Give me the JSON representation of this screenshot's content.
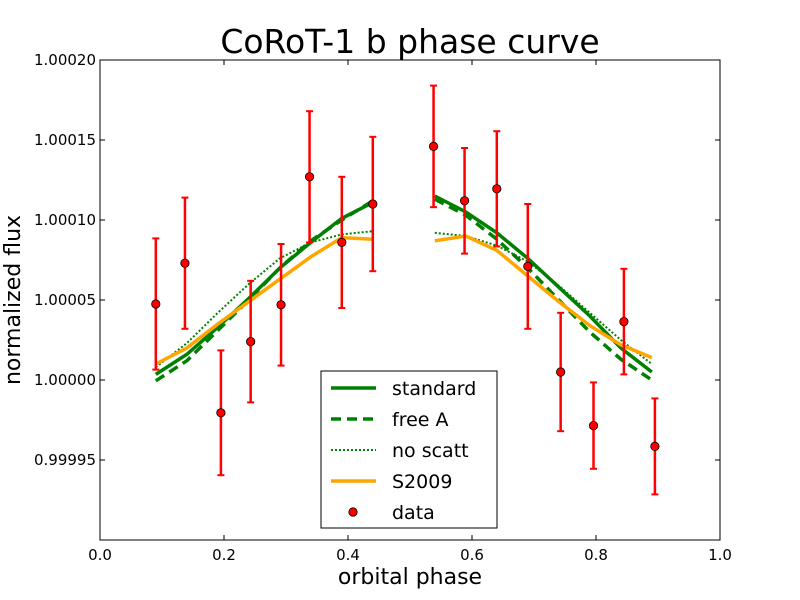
{
  "chart_data": {
    "type": "scatter",
    "title": "CoRoT-1 b phase curve",
    "xlabel": "orbital phase",
    "ylabel": "normalized flux",
    "xlim": [
      0.0,
      1.0
    ],
    "ylim": [
      0.9999,
      1.0002
    ],
    "xticks": [
      "0.0",
      "0.2",
      "0.4",
      "0.6",
      "0.8",
      "1.0"
    ],
    "yticks": [
      "0.99995",
      "1.00000",
      "1.00005",
      "1.00010",
      "1.00015",
      "1.00020"
    ],
    "legend_position": "bottom-center",
    "series": [
      {
        "name": "standard",
        "kind": "line",
        "color": "#008000",
        "style": "solid",
        "segments": [
          {
            "x": [
              0.09,
              0.14,
              0.19,
              0.24,
              0.29,
              0.34,
              0.39,
              0.44
            ],
            "y": [
              1.0000035,
              1.000016,
              1.000033,
              1.000051,
              1.00007,
              1.000086,
              1.000101,
              1.000111
            ]
          },
          {
            "x": [
              0.54,
              0.59,
              0.64,
              0.69,
              0.74,
              0.79,
              0.84,
              0.89
            ],
            "y": [
              1.000115,
              1.000105,
              1.000092,
              1.000076,
              1.000058,
              1.00004,
              1.00002,
              1.000005
            ]
          }
        ]
      },
      {
        "name": "free A",
        "kind": "line",
        "color": "#008000",
        "style": "dashed",
        "segments": [
          {
            "x": [
              0.09,
              0.14,
              0.19,
              0.24,
              0.29,
              0.34,
              0.39,
              0.44
            ],
            "y": [
              0.9999995,
              1.000012,
              1.000031,
              1.00005,
              1.00007,
              1.000087,
              1.0001,
              1.000112
            ]
          },
          {
            "x": [
              0.54,
              0.59,
              0.64,
              0.69,
              0.74,
              0.79,
              0.84,
              0.89
            ],
            "y": [
              1.000113,
              1.000103,
              1.000088,
              1.00007,
              1.00005,
              1.00003,
              1.000013,
              1.0
            ]
          }
        ]
      },
      {
        "name": "no scatt",
        "kind": "line",
        "color": "#008000",
        "style": "dotted",
        "segments": [
          {
            "x": [
              0.09,
              0.14,
              0.19,
              0.24,
              0.29,
              0.34,
              0.39,
              0.44
            ],
            "y": [
              1.000008,
              1.000023,
              1.000042,
              1.00006,
              1.000076,
              1.000086,
              1.000091,
              1.000093
            ]
          },
          {
            "x": [
              0.54,
              0.59,
              0.64,
              0.69,
              0.74,
              0.79,
              0.84,
              0.89
            ],
            "y": [
              1.000092,
              1.00009,
              1.000084,
              1.000074,
              1.000059,
              1.000042,
              1.000025,
              1.00001
            ]
          }
        ]
      },
      {
        "name": "S2009",
        "kind": "line",
        "color": "#FFA500",
        "style": "solid",
        "segments": [
          {
            "x": [
              0.09,
              0.14,
              0.19,
              0.24,
              0.29,
              0.34,
              0.39,
              0.44
            ],
            "y": [
              1.00001,
              1.00002,
              1.000035,
              1.000049,
              1.000063,
              1.000077,
              1.000089,
              1.000088
            ]
          },
          {
            "x": [
              0.54,
              0.59,
              0.64,
              0.69,
              0.74,
              0.79,
              0.84,
              0.89
            ],
            "y": [
              1.000087,
              1.00009,
              1.000081,
              1.000065,
              1.000049,
              1.000034,
              1.000022,
              1.000014
            ]
          }
        ]
      },
      {
        "name": "data",
        "kind": "errorbar",
        "color": "#FF0000",
        "errcolor": "#FF0000",
        "x": [
          0.09,
          0.137,
          0.195,
          0.243,
          0.292,
          0.338,
          0.39,
          0.44,
          0.538,
          0.588,
          0.64,
          0.69,
          0.743,
          0.796,
          0.845,
          0.895
        ],
        "y": [
          1.0000475,
          1.000073,
          0.9999795,
          1.000024,
          1.000047,
          1.000127,
          1.000086,
          1.00011,
          1.000146,
          1.000112,
          1.0001195,
          1.000071,
          1.000005,
          0.9999715,
          1.0000365,
          0.9999585
        ],
        "yerr": [
          4.1e-05,
          4.1e-05,
          3.9e-05,
          3.8e-05,
          3.8e-05,
          4.1e-05,
          4.1e-05,
          4.2e-05,
          3.8e-05,
          3.3e-05,
          3.6e-05,
          3.9e-05,
          3.7e-05,
          2.7e-05,
          3.3e-05,
          3e-05
        ]
      }
    ]
  }
}
